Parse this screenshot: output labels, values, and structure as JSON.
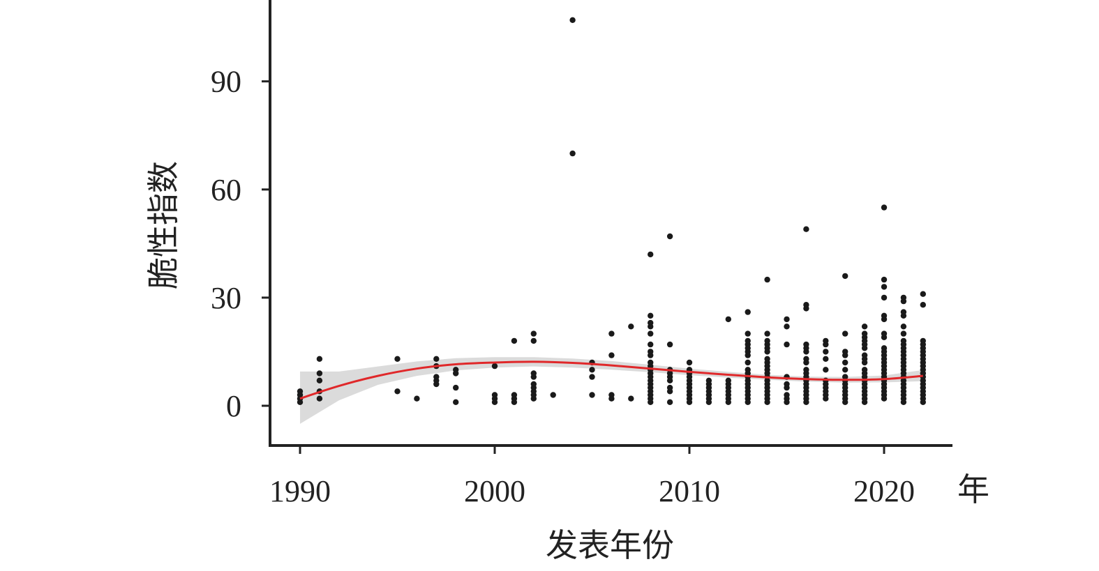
{
  "chart_data": {
    "type": "scatter",
    "title": "",
    "xlabel": "发表年份",
    "ylabel": "脆性指数",
    "x_unit": "年",
    "xlim": [
      1988.5,
      2025.5
    ],
    "ylim": [
      -11,
      113
    ],
    "x_ticks": [
      1990,
      2000,
      2010,
      2020
    ],
    "y_ticks": [
      0,
      30,
      60,
      90
    ],
    "grid": false,
    "legend": "none",
    "point_color": "#1a1a1a",
    "fit_color": "#e0282a",
    "ci_color": "#d9d9d9",
    "points": [
      [
        1990,
        1
      ],
      [
        1990,
        2
      ],
      [
        1990,
        3
      ],
      [
        1990,
        4
      ],
      [
        1991,
        2
      ],
      [
        1991,
        4
      ],
      [
        1991,
        7
      ],
      [
        1991,
        9
      ],
      [
        1991,
        13
      ],
      [
        1995,
        4
      ],
      [
        1995,
        13
      ],
      [
        1996,
        2
      ],
      [
        1997,
        6
      ],
      [
        1997,
        7
      ],
      [
        1997,
        8
      ],
      [
        1997,
        11
      ],
      [
        1997,
        13
      ],
      [
        1998,
        1
      ],
      [
        1998,
        5
      ],
      [
        1998,
        9
      ],
      [
        1998,
        10
      ],
      [
        2000,
        1
      ],
      [
        2000,
        2
      ],
      [
        2000,
        3
      ],
      [
        2000,
        11
      ],
      [
        2001,
        1
      ],
      [
        2001,
        2
      ],
      [
        2001,
        3
      ],
      [
        2001,
        18
      ],
      [
        2002,
        2
      ],
      [
        2002,
        3
      ],
      [
        2002,
        4
      ],
      [
        2002,
        5
      ],
      [
        2002,
        6
      ],
      [
        2002,
        8
      ],
      [
        2002,
        9
      ],
      [
        2002,
        18
      ],
      [
        2002,
        20
      ],
      [
        2003,
        3
      ],
      [
        2004,
        70
      ],
      [
        2004,
        107
      ],
      [
        2005,
        3
      ],
      [
        2005,
        8
      ],
      [
        2005,
        10
      ],
      [
        2005,
        12
      ],
      [
        2006,
        2
      ],
      [
        2006,
        3
      ],
      [
        2006,
        14
      ],
      [
        2006,
        20
      ],
      [
        2007,
        2
      ],
      [
        2007,
        22
      ],
      [
        2008,
        1
      ],
      [
        2008,
        2
      ],
      [
        2008,
        3
      ],
      [
        2008,
        4
      ],
      [
        2008,
        5
      ],
      [
        2008,
        6
      ],
      [
        2008,
        7
      ],
      [
        2008,
        8
      ],
      [
        2008,
        9
      ],
      [
        2008,
        10
      ],
      [
        2008,
        11
      ],
      [
        2008,
        12
      ],
      [
        2008,
        14
      ],
      [
        2008,
        15
      ],
      [
        2008,
        17
      ],
      [
        2008,
        20
      ],
      [
        2008,
        22
      ],
      [
        2008,
        23
      ],
      [
        2008,
        25
      ],
      [
        2008,
        42
      ],
      [
        2009,
        1
      ],
      [
        2009,
        4
      ],
      [
        2009,
        5
      ],
      [
        2009,
        7
      ],
      [
        2009,
        8
      ],
      [
        2009,
        9
      ],
      [
        2009,
        10
      ],
      [
        2009,
        17
      ],
      [
        2009,
        47
      ],
      [
        2010,
        1
      ],
      [
        2010,
        2
      ],
      [
        2010,
        3
      ],
      [
        2010,
        4
      ],
      [
        2010,
        5
      ],
      [
        2010,
        6
      ],
      [
        2010,
        7
      ],
      [
        2010,
        8
      ],
      [
        2010,
        9
      ],
      [
        2010,
        10
      ],
      [
        2010,
        12
      ],
      [
        2011,
        1
      ],
      [
        2011,
        2
      ],
      [
        2011,
        3
      ],
      [
        2011,
        4
      ],
      [
        2011,
        5
      ],
      [
        2011,
        6
      ],
      [
        2011,
        7
      ],
      [
        2012,
        1
      ],
      [
        2012,
        2
      ],
      [
        2012,
        3
      ],
      [
        2012,
        4
      ],
      [
        2012,
        5
      ],
      [
        2012,
        6
      ],
      [
        2012,
        7
      ],
      [
        2012,
        24
      ],
      [
        2013,
        1
      ],
      [
        2013,
        2
      ],
      [
        2013,
        3
      ],
      [
        2013,
        4
      ],
      [
        2013,
        5
      ],
      [
        2013,
        6
      ],
      [
        2013,
        7
      ],
      [
        2013,
        8
      ],
      [
        2013,
        9
      ],
      [
        2013,
        10
      ],
      [
        2013,
        12
      ],
      [
        2013,
        14
      ],
      [
        2013,
        15
      ],
      [
        2013,
        16
      ],
      [
        2013,
        17
      ],
      [
        2013,
        18
      ],
      [
        2013,
        20
      ],
      [
        2013,
        26
      ],
      [
        2014,
        1
      ],
      [
        2014,
        2
      ],
      [
        2014,
        3
      ],
      [
        2014,
        4
      ],
      [
        2014,
        5
      ],
      [
        2014,
        6
      ],
      [
        2014,
        7
      ],
      [
        2014,
        8
      ],
      [
        2014,
        9
      ],
      [
        2014,
        10
      ],
      [
        2014,
        11
      ],
      [
        2014,
        12
      ],
      [
        2014,
        13
      ],
      [
        2014,
        15
      ],
      [
        2014,
        16
      ],
      [
        2014,
        17
      ],
      [
        2014,
        18
      ],
      [
        2014,
        20
      ],
      [
        2014,
        35
      ],
      [
        2015,
        1
      ],
      [
        2015,
        2
      ],
      [
        2015,
        3
      ],
      [
        2015,
        5
      ],
      [
        2015,
        6
      ],
      [
        2015,
        8
      ],
      [
        2015,
        17
      ],
      [
        2015,
        22
      ],
      [
        2015,
        24
      ],
      [
        2016,
        1
      ],
      [
        2016,
        2
      ],
      [
        2016,
        3
      ],
      [
        2016,
        4
      ],
      [
        2016,
        5
      ],
      [
        2016,
        6
      ],
      [
        2016,
        7
      ],
      [
        2016,
        8
      ],
      [
        2016,
        9
      ],
      [
        2016,
        10
      ],
      [
        2016,
        12
      ],
      [
        2016,
        13
      ],
      [
        2016,
        15
      ],
      [
        2016,
        16
      ],
      [
        2016,
        17
      ],
      [
        2016,
        27
      ],
      [
        2016,
        28
      ],
      [
        2016,
        49
      ],
      [
        2017,
        2
      ],
      [
        2017,
        3
      ],
      [
        2017,
        4
      ],
      [
        2017,
        5
      ],
      [
        2017,
        6
      ],
      [
        2017,
        7
      ],
      [
        2017,
        10
      ],
      [
        2017,
        13
      ],
      [
        2017,
        15
      ],
      [
        2017,
        17
      ],
      [
        2017,
        18
      ],
      [
        2018,
        1
      ],
      [
        2018,
        2
      ],
      [
        2018,
        3
      ],
      [
        2018,
        4
      ],
      [
        2018,
        5
      ],
      [
        2018,
        6
      ],
      [
        2018,
        7
      ],
      [
        2018,
        8
      ],
      [
        2018,
        10
      ],
      [
        2018,
        12
      ],
      [
        2018,
        14
      ],
      [
        2018,
        15
      ],
      [
        2018,
        20
      ],
      [
        2018,
        36
      ],
      [
        2019,
        1
      ],
      [
        2019,
        2
      ],
      [
        2019,
        3
      ],
      [
        2019,
        4
      ],
      [
        2019,
        5
      ],
      [
        2019,
        6
      ],
      [
        2019,
        7
      ],
      [
        2019,
        8
      ],
      [
        2019,
        9
      ],
      [
        2019,
        10
      ],
      [
        2019,
        12
      ],
      [
        2019,
        13
      ],
      [
        2019,
        14
      ],
      [
        2019,
        16
      ],
      [
        2019,
        17
      ],
      [
        2019,
        18
      ],
      [
        2019,
        19
      ],
      [
        2019,
        20
      ],
      [
        2019,
        22
      ],
      [
        2020,
        2
      ],
      [
        2020,
        3
      ],
      [
        2020,
        4
      ],
      [
        2020,
        5
      ],
      [
        2020,
        6
      ],
      [
        2020,
        7
      ],
      [
        2020,
        8
      ],
      [
        2020,
        9
      ],
      [
        2020,
        10
      ],
      [
        2020,
        11
      ],
      [
        2020,
        12
      ],
      [
        2020,
        13
      ],
      [
        2020,
        14
      ],
      [
        2020,
        15
      ],
      [
        2020,
        16
      ],
      [
        2020,
        19
      ],
      [
        2020,
        20
      ],
      [
        2020,
        24
      ],
      [
        2020,
        25
      ],
      [
        2020,
        30
      ],
      [
        2020,
        33
      ],
      [
        2020,
        35
      ],
      [
        2020,
        55
      ],
      [
        2021,
        1
      ],
      [
        2021,
        2
      ],
      [
        2021,
        3
      ],
      [
        2021,
        4
      ],
      [
        2021,
        5
      ],
      [
        2021,
        6
      ],
      [
        2021,
        7
      ],
      [
        2021,
        8
      ],
      [
        2021,
        9
      ],
      [
        2021,
        10
      ],
      [
        2021,
        11
      ],
      [
        2021,
        12
      ],
      [
        2021,
        13
      ],
      [
        2021,
        14
      ],
      [
        2021,
        15
      ],
      [
        2021,
        16
      ],
      [
        2021,
        17
      ],
      [
        2021,
        18
      ],
      [
        2021,
        20
      ],
      [
        2021,
        22
      ],
      [
        2021,
        25
      ],
      [
        2021,
        26
      ],
      [
        2021,
        29
      ],
      [
        2021,
        30
      ],
      [
        2022,
        1
      ],
      [
        2022,
        2
      ],
      [
        2022,
        3
      ],
      [
        2022,
        4
      ],
      [
        2022,
        5
      ],
      [
        2022,
        6
      ],
      [
        2022,
        7
      ],
      [
        2022,
        8
      ],
      [
        2022,
        9
      ],
      [
        2022,
        10
      ],
      [
        2022,
        11
      ],
      [
        2022,
        12
      ],
      [
        2022,
        13
      ],
      [
        2022,
        14
      ],
      [
        2022,
        15
      ],
      [
        2022,
        16
      ],
      [
        2022,
        17
      ],
      [
        2022,
        18
      ],
      [
        2022,
        28
      ],
      [
        2022,
        31
      ]
    ],
    "fit": {
      "x": [
        1990,
        1992,
        1994,
        1996,
        1998,
        2000,
        2002,
        2004,
        2006,
        2008,
        2010,
        2012,
        2014,
        2016,
        2018,
        2020,
        2022
      ],
      "y": [
        2,
        5.5,
        8.3,
        10.3,
        11.5,
        12,
        12.2,
        11.9,
        11.2,
        10.3,
        9.4,
        8.6,
        7.9,
        7.4,
        7.2,
        7.4,
        8.3
      ],
      "lower": [
        -5,
        1.5,
        5.8,
        8.3,
        9.8,
        10.6,
        10.9,
        10.6,
        10.0,
        9.3,
        8.5,
        7.8,
        7.2,
        6.7,
        6.4,
        6.5,
        6.8
      ],
      "upper": [
        9.5,
        9.5,
        10.9,
        12.3,
        13.2,
        13.5,
        13.5,
        13.1,
        12.4,
        11.4,
        10.3,
        9.4,
        8.6,
        8.1,
        8.0,
        8.4,
        9.9
      ]
    }
  }
}
